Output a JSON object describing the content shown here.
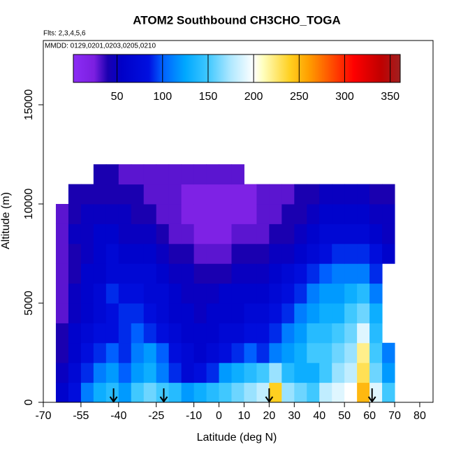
{
  "chart_data": {
    "type": "heatmap",
    "title": "ATOM2 Southbound CH3CHO_TOGA",
    "subtitle": "Flts: 2,3,4,5,6",
    "annotation": "MMDD: 0129,0201,0203,0205,0210",
    "xlabel": "Latitude (deg N)",
    "ylabel": "Altitude (m)",
    "xlim": [
      -70,
      85.3
    ],
    "ylim": [
      0,
      18240
    ],
    "xticks": [
      -70,
      -55,
      -40,
      -25,
      -10,
      0,
      10,
      20,
      30,
      40,
      50,
      60,
      70,
      80
    ],
    "yticks": [
      0,
      5000,
      10000,
      15000
    ],
    "x_bins": [
      -65,
      -60,
      -55,
      -50,
      -45,
      -40,
      -35,
      -30,
      -25,
      -20,
      -15,
      -10,
      -5,
      0,
      5,
      10,
      15,
      20,
      25,
      30,
      35,
      40,
      45,
      50,
      55,
      60,
      65,
      70
    ],
    "y_bins": [
      0,
      1000,
      2000,
      3000,
      4000,
      5000,
      6000,
      7000,
      8000,
      9000,
      10000,
      11000,
      12000
    ],
    "values": [
      [
        60,
        80,
        110,
        130,
        140,
        120,
        150,
        160,
        150,
        140,
        120,
        130,
        140,
        150,
        160,
        170,
        180,
        240,
        170,
        160,
        150,
        180,
        190,
        200,
        250,
        190,
        150
      ],
      [
        50,
        70,
        90,
        110,
        120,
        100,
        120,
        130,
        110,
        90,
        70,
        80,
        90,
        120,
        130,
        140,
        150,
        170,
        140,
        130,
        130,
        150,
        170,
        180,
        230,
        160,
        120
      ],
      [
        40,
        60,
        80,
        90,
        100,
        90,
        110,
        120,
        100,
        80,
        70,
        60,
        70,
        80,
        90,
        100,
        90,
        110,
        120,
        130,
        150,
        150,
        160,
        170,
        220,
        150,
        110
      ],
      [
        40,
        60,
        70,
        80,
        80,
        90,
        100,
        90,
        80,
        70,
        60,
        60,
        60,
        70,
        70,
        80,
        80,
        90,
        110,
        120,
        140,
        140,
        150,
        160,
        190,
        140,
        null
      ],
      [
        30,
        50,
        60,
        70,
        80,
        90,
        90,
        80,
        70,
        60,
        60,
        50,
        60,
        60,
        60,
        70,
        70,
        80,
        90,
        110,
        120,
        130,
        130,
        150,
        160,
        130,
        null
      ],
      [
        30,
        50,
        60,
        70,
        90,
        80,
        80,
        70,
        70,
        60,
        50,
        50,
        50,
        60,
        60,
        60,
        60,
        70,
        80,
        90,
        110,
        120,
        120,
        130,
        140,
        110,
        null
      ],
      [
        30,
        40,
        60,
        60,
        70,
        70,
        70,
        70,
        60,
        50,
        50,
        40,
        40,
        40,
        50,
        50,
        50,
        60,
        70,
        80,
        90,
        100,
        110,
        110,
        110,
        90,
        null
      ],
      [
        30,
        40,
        50,
        60,
        70,
        60,
        60,
        60,
        50,
        40,
        40,
        30,
        30,
        30,
        40,
        40,
        40,
        50,
        50,
        60,
        70,
        80,
        90,
        90,
        90,
        80,
        60
      ],
      [
        30,
        50,
        50,
        60,
        60,
        50,
        50,
        50,
        40,
        30,
        30,
        20,
        20,
        20,
        30,
        30,
        30,
        40,
        40,
        50,
        60,
        70,
        70,
        70,
        70,
        60,
        50
      ],
      [
        30,
        40,
        50,
        50,
        50,
        50,
        40,
        40,
        30,
        30,
        20,
        20,
        20,
        20,
        20,
        20,
        30,
        30,
        40,
        40,
        50,
        60,
        60,
        60,
        60,
        50,
        50
      ],
      [
        null,
        40,
        40,
        40,
        40,
        40,
        40,
        30,
        30,
        30,
        20,
        20,
        20,
        20,
        20,
        20,
        30,
        30,
        30,
        40,
        40,
        50,
        50,
        50,
        50,
        40,
        40
      ],
      [
        null,
        null,
        null,
        40,
        40,
        30,
        30,
        30,
        30,
        30,
        30,
        30,
        30,
        30,
        30,
        null,
        null,
        null,
        null,
        null,
        null,
        null,
        null,
        null,
        null,
        null,
        null
      ]
    ],
    "markers_x": [
      -42,
      -22,
      20,
      61
    ],
    "colorbar": {
      "lim": [
        2,
        361
      ],
      "ticks": [
        50,
        100,
        150,
        200,
        250,
        300,
        350
      ],
      "colorscale": [
        [
          2,
          "#8b2cf5"
        ],
        [
          25,
          "#7b1fe0"
        ],
        [
          40,
          "#1a00b0"
        ],
        [
          55,
          "#0000c8"
        ],
        [
          85,
          "#0010e0"
        ],
        [
          100,
          "#0060ff"
        ],
        [
          125,
          "#00a8ff"
        ],
        [
          150,
          "#40c8ff"
        ],
        [
          175,
          "#b0e8ff"
        ],
        [
          200,
          "#ffffff"
        ],
        [
          210,
          "#ffffc0"
        ],
        [
          240,
          "#ffd020"
        ],
        [
          260,
          "#ffa000"
        ],
        [
          290,
          "#ff4000"
        ],
        [
          310,
          "#ff0000"
        ],
        [
          340,
          "#c00000"
        ],
        [
          361,
          "#a02020"
        ]
      ]
    }
  }
}
